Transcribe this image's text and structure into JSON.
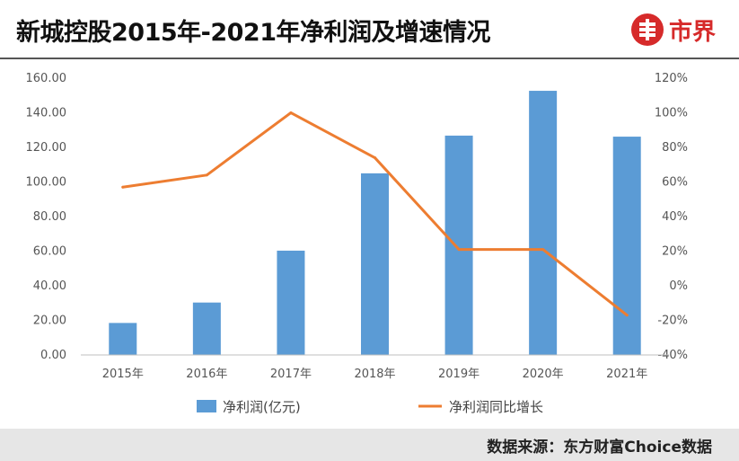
{
  "header": {
    "title": "新城控股2015年-2021年净利润及增速情况",
    "logo_text": "市界"
  },
  "footer": {
    "source": "数据来源：东方财富Choice数据"
  },
  "colors": {
    "bar": "#5b9bd5",
    "line": "#ed7d31",
    "brand": "#d62a2a"
  },
  "chart_data": {
    "type": "bar",
    "title": "新城控股2015年-2021年净利润及增速情况",
    "categories": [
      "2015年",
      "2016年",
      "2017年",
      "2018年",
      "2019年",
      "2020年",
      "2021年"
    ],
    "series": [
      {
        "name": "净利润(亿元)",
        "type": "bar",
        "axis": "left",
        "values": [
          18.5,
          30.3,
          60.3,
          105.0,
          126.8,
          152.7,
          126.2
        ]
      },
      {
        "name": "净利润同比增长",
        "type": "line",
        "axis": "right",
        "values": [
          57,
          64,
          100,
          74,
          21,
          21,
          -17
        ]
      }
    ],
    "y_left": {
      "min": 0,
      "max": 160,
      "step": 20,
      "ticks": [
        "0.00",
        "20.00",
        "40.00",
        "60.00",
        "80.00",
        "100.00",
        "120.00",
        "140.00",
        "160.00"
      ]
    },
    "y_right": {
      "min": -40,
      "max": 120,
      "step": 20,
      "ticks": [
        "-40%",
        "-20%",
        "0%",
        "20%",
        "40%",
        "60%",
        "80%",
        "100%",
        "120%"
      ]
    },
    "grid": false,
    "legend_position": "bottom"
  }
}
